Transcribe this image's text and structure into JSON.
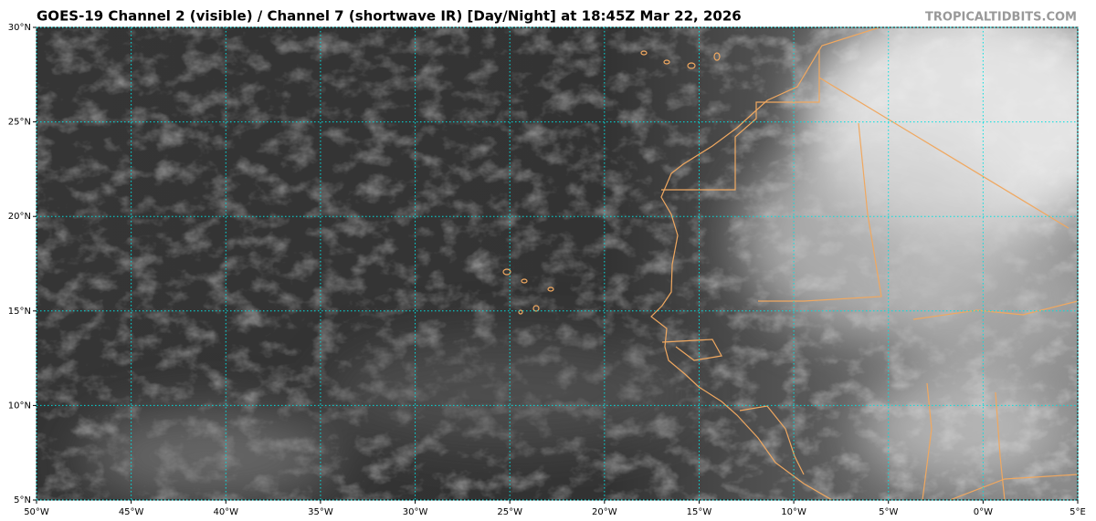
{
  "map": {
    "title": "GOES-19 Channel 2 (visible) / Channel 7 (shortwave IR) [Day/Night] at 18:45Z Mar 22, 2026",
    "credit": "TROPICALTIDBITS.COM",
    "xlim": [
      -50,
      5
    ],
    "ylim": [
      5,
      30
    ],
    "xticks": [
      {
        "value": -50,
        "label": "50°W"
      },
      {
        "value": -45,
        "label": "45°W"
      },
      {
        "value": -40,
        "label": "40°W"
      },
      {
        "value": -35,
        "label": "35°W"
      },
      {
        "value": -30,
        "label": "30°W"
      },
      {
        "value": -25,
        "label": "25°W"
      },
      {
        "value": -20,
        "label": "20°W"
      },
      {
        "value": -15,
        "label": "15°W"
      },
      {
        "value": -10,
        "label": "10°W"
      },
      {
        "value": -5,
        "label": "5°W"
      },
      {
        "value": 0,
        "label": "0°W"
      },
      {
        "value": 5,
        "label": "5°E"
      }
    ],
    "yticks": [
      {
        "value": 5,
        "label": "5°N"
      },
      {
        "value": 10,
        "label": "10°N"
      },
      {
        "value": 15,
        "label": "15°N"
      },
      {
        "value": 20,
        "label": "20°N"
      },
      {
        "value": 25,
        "label": "25°N"
      },
      {
        "value": 30,
        "label": "30°N"
      }
    ],
    "grid": true,
    "grid_color": "#00e0e0"
  }
}
